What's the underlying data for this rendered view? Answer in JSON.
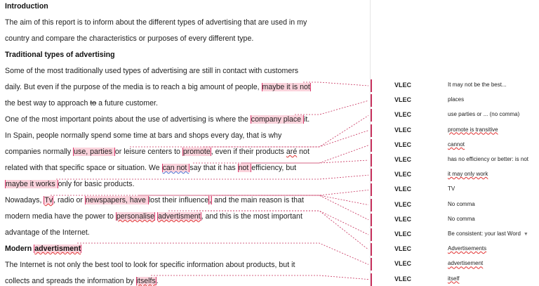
{
  "document": {
    "lines": [
      {
        "bold": true,
        "segs": [
          {
            "t": "Introduction"
          }
        ]
      },
      {
        "segs": [
          {
            "t": "The aim of this report is to inform about the different types of advertising that are used in my"
          }
        ]
      },
      {
        "segs": [
          {
            "t": "country and compare the characteristics or purposes of every different type."
          }
        ]
      },
      {
        "bold": true,
        "segs": [
          {
            "t": "Traditional types of advertising"
          }
        ]
      },
      {
        "segs": [
          {
            "t": "Some of the most traditionally used types of advertising are still in contact with customers"
          }
        ]
      },
      {
        "segs": [
          {
            "t": "daily. But even if the purpose of the media is to reach a big amount of people, "
          },
          {
            "t": "maybe it is not",
            "hl": true
          }
        ]
      },
      {
        "segs": [
          {
            "t": "the best way to approach "
          },
          {
            "t": "to",
            "strike": true
          },
          {
            "t": " a future customer."
          }
        ]
      },
      {
        "segs": [
          {
            "t": "One of the most important points about the use of advertising is where the "
          },
          {
            "t": "company place ",
            "hl": true
          },
          {
            "t": "it."
          }
        ]
      },
      {
        "segs": [
          {
            "t": "In Spain, people normally spend some time at bars and shops every day, that is why"
          }
        ]
      },
      {
        "segs": [
          {
            "t": "companies normally "
          },
          {
            "t": "use, parties ",
            "hl": true
          },
          {
            "t": "or leisure centers to "
          },
          {
            "t": "promote",
            "hl": true
          },
          {
            "t": ", even if their products "
          },
          {
            "t": "aré",
            "sq": true
          },
          {
            "t": " not"
          }
        ]
      },
      {
        "segs": [
          {
            "t": "related with that specific space or situation. We "
          },
          {
            "t": "can not ",
            "hl": true,
            "sqb": true
          },
          {
            "t": "say that it has "
          },
          {
            "t": "not ",
            "hl": true
          },
          {
            "t": "efficiency, but"
          }
        ]
      },
      {
        "segs": [
          {
            "t": "maybe it works ",
            "hl": true
          },
          {
            "t": "only for basic products."
          }
        ]
      },
      {
        "segs": [
          {
            "t": "Nowadays, "
          },
          {
            "t": "Tv",
            "hl": true,
            "sq": true
          },
          {
            "t": ", radio or "
          },
          {
            "t": "newspapers, have ",
            "hl": true
          },
          {
            "t": "lost their influence"
          },
          {
            "t": ",",
            "hl": true
          },
          {
            "t": " and the main reason is that"
          }
        ]
      },
      {
        "segs": [
          {
            "t": "modern media have the power to "
          },
          {
            "t": "personalise",
            "hl": true,
            "sq": true
          },
          {
            "t": " "
          },
          {
            "t": "advertisment",
            "hl": true,
            "sq": true
          },
          {
            "t": ", and this is the most important"
          }
        ]
      },
      {
        "segs": [
          {
            "t": "advantage of the Internet."
          }
        ]
      },
      {
        "bold": true,
        "segs": [
          {
            "t": "Modern "
          },
          {
            "t": "advertisment",
            "hl": true,
            "sq": true
          }
        ]
      },
      {
        "segs": [
          {
            "t": "The Internet is not only the best tool to look for specific information about products, but it"
          }
        ]
      },
      {
        "segs": [
          {
            "t": "collects and spreads the information by "
          },
          {
            "t": "itselfs",
            "hl": true,
            "sq": true
          },
          {
            "t": "."
          }
        ]
      }
    ]
  },
  "comments": [
    {
      "author": "VLEC",
      "text": "It may not be the best..."
    },
    {
      "author": "VLEC",
      "text": "places"
    },
    {
      "author": "VLEC",
      "text": "use parties or ... (no comma)"
    },
    {
      "author": "VLEC",
      "text": "promote is transitive",
      "sq": true
    },
    {
      "author": "VLEC",
      "text": "cannot",
      "sq": true
    },
    {
      "author": "VLEC",
      "text": "has no efficiency or better: is not"
    },
    {
      "author": "VLEC",
      "text": "it may only work",
      "sq": true
    },
    {
      "author": "VLEC",
      "text": "TV"
    },
    {
      "author": "VLEC",
      "text": "No comma"
    },
    {
      "author": "VLEC",
      "text": "No comma"
    },
    {
      "author": "VLEC",
      "text": "Be consistent: your last Word",
      "expand": true
    },
    {
      "author": "VLEC",
      "text": "Advertisements",
      "sq": true
    },
    {
      "author": "VLEC",
      "text": "advertisement",
      "sq": true
    },
    {
      "author": "VLEC",
      "text": "itself",
      "sq": true
    }
  ],
  "colors": {
    "comment_accent": "#c8325e",
    "highlight": "#fbd3dc"
  },
  "icons": {
    "expand": "triangle-down-icon"
  }
}
